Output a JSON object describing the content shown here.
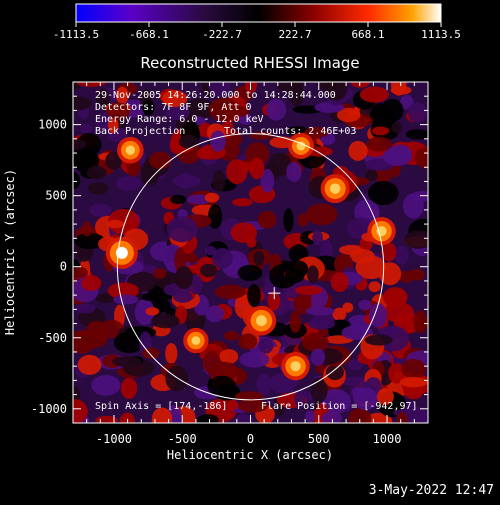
{
  "chart_data": {
    "type": "heatmap",
    "title": "Reconstructed RHESSI Image",
    "xlabel": "Heliocentric X (arcsec)",
    "ylabel": "Heliocentric Y (arcsec)",
    "xlim": [
      -1300,
      1300
    ],
    "ylim": [
      -1100,
      1300
    ],
    "x_ticks": [
      -1000,
      -500,
      0,
      500,
      1000
    ],
    "y_ticks": [
      -1000,
      -500,
      0,
      500,
      1000
    ],
    "x_tick_labels": [
      "-1000",
      "-500",
      "0",
      "500",
      "1000"
    ],
    "y_tick_labels": [
      "-1000",
      "-500",
      "0",
      "500",
      "1000"
    ],
    "colorbar": {
      "range": [
        -1113.5,
        1113.5
      ],
      "tick_values": [
        -1113.5,
        -668.1,
        -222.7,
        222.7,
        668.1,
        1113.5
      ],
      "tick_labels": [
        "-1113.5",
        "-668.1",
        "-222.7",
        "222.7",
        "668.1",
        "1113.5"
      ],
      "colors": [
        "#0000ff",
        "#5a00c8",
        "#2a0a40",
        "#000000",
        "#8a0000",
        "#ff2a00",
        "#ffa000",
        "#ffffff"
      ]
    },
    "annotations": [
      "29-Nov-2005 14:26:20.000 to 14:28:44.000",
      "Detectors: 7F 8F 9F, Att 0",
      "Energy Range: 6.0 - 12.0 keV",
      "Back Projection",
      "Total counts: 2.46E+03",
      "Spin Axis = [174,-186]",
      "Flare Position = [-942,97]"
    ],
    "solar_limb": {
      "center": [
        0,
        0
      ],
      "radius": 975
    },
    "spin_axis_marker": [
      174,
      -186
    ],
    "bright_sources": [
      {
        "x": -942,
        "y": 97,
        "level": 1.0
      },
      {
        "x": 80,
        "y": -380,
        "level": 0.8
      },
      {
        "x": 620,
        "y": 550,
        "level": 0.75
      },
      {
        "x": 330,
        "y": -700,
        "level": 0.7
      },
      {
        "x": 960,
        "y": 250,
        "level": 0.7
      },
      {
        "x": -880,
        "y": 820,
        "level": 0.55
      },
      {
        "x": 370,
        "y": 850,
        "level": 0.5
      },
      {
        "x": -400,
        "y": -520,
        "level": 0.45
      }
    ]
  },
  "footer": {
    "date": "3-May-2022 12:47"
  }
}
